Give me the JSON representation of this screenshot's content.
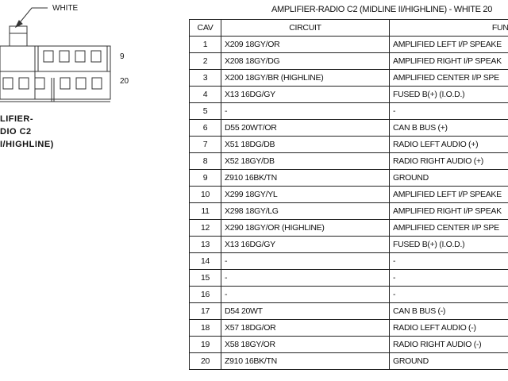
{
  "connector": {
    "color_label": "WHITE",
    "pin_label_top": "9",
    "pin_label_bottom": "20",
    "name_lines": [
      "LIFIER-",
      "DIO C2",
      "I/HIGHLINE)"
    ]
  },
  "table": {
    "title": "AMPLIFIER-RADIO C2 (MIDLINE II/HIGHLINE) - WHITE 20",
    "headers": [
      "CAV",
      "CIRCUIT",
      "FUNCT"
    ],
    "rows": [
      [
        "1",
        "X209 18GY/OR",
        "AMPLIFIED LEFT I/P SPEAKE"
      ],
      [
        "2",
        "X208 18GY/DG",
        "AMPLIFIED RIGHT I/P SPEAK"
      ],
      [
        "3",
        "X200 18GY/BR (HIGHLINE)",
        "AMPLIFIED CENTER I/P SPE"
      ],
      [
        "4",
        "X13 16DG/GY",
        "FUSED B(+) (I.O.D.)"
      ],
      [
        "5",
        "-",
        "-"
      ],
      [
        "6",
        "D55 20WT/OR",
        "CAN B BUS (+)"
      ],
      [
        "7",
        "X51 18DG/DB",
        "RADIO LEFT AUDIO (+)"
      ],
      [
        "8",
        "X52 18GY/DB",
        "RADIO RIGHT AUDIO (+)"
      ],
      [
        "9",
        "Z910 16BK/TN",
        "GROUND"
      ],
      [
        "10",
        "X299 18GY/YL",
        "AMPLIFIED LEFT I/P SPEAKE"
      ],
      [
        "11",
        "X298 18GY/LG",
        "AMPLIFIED RIGHT I/P SPEAK"
      ],
      [
        "12",
        "X290 18GY/OR (HIGHLINE)",
        "AMPLIFIED CENTER I/P SPE"
      ],
      [
        "13",
        "X13 16DG/GY",
        "FUSED B(+) (I.O.D.)"
      ],
      [
        "14",
        "-",
        "-"
      ],
      [
        "15",
        "-",
        "-"
      ],
      [
        "16",
        "-",
        "-"
      ],
      [
        "17",
        "D54 20WT",
        "CAN B BUS (-)"
      ],
      [
        "18",
        "X57 18DG/OR",
        "RADIO LEFT AUDIO (-)"
      ],
      [
        "19",
        "X58 18GY/OR",
        "RADIO RIGHT AUDIO (-)"
      ],
      [
        "20",
        "Z910 16BK/TN",
        "GROUND"
      ]
    ]
  }
}
